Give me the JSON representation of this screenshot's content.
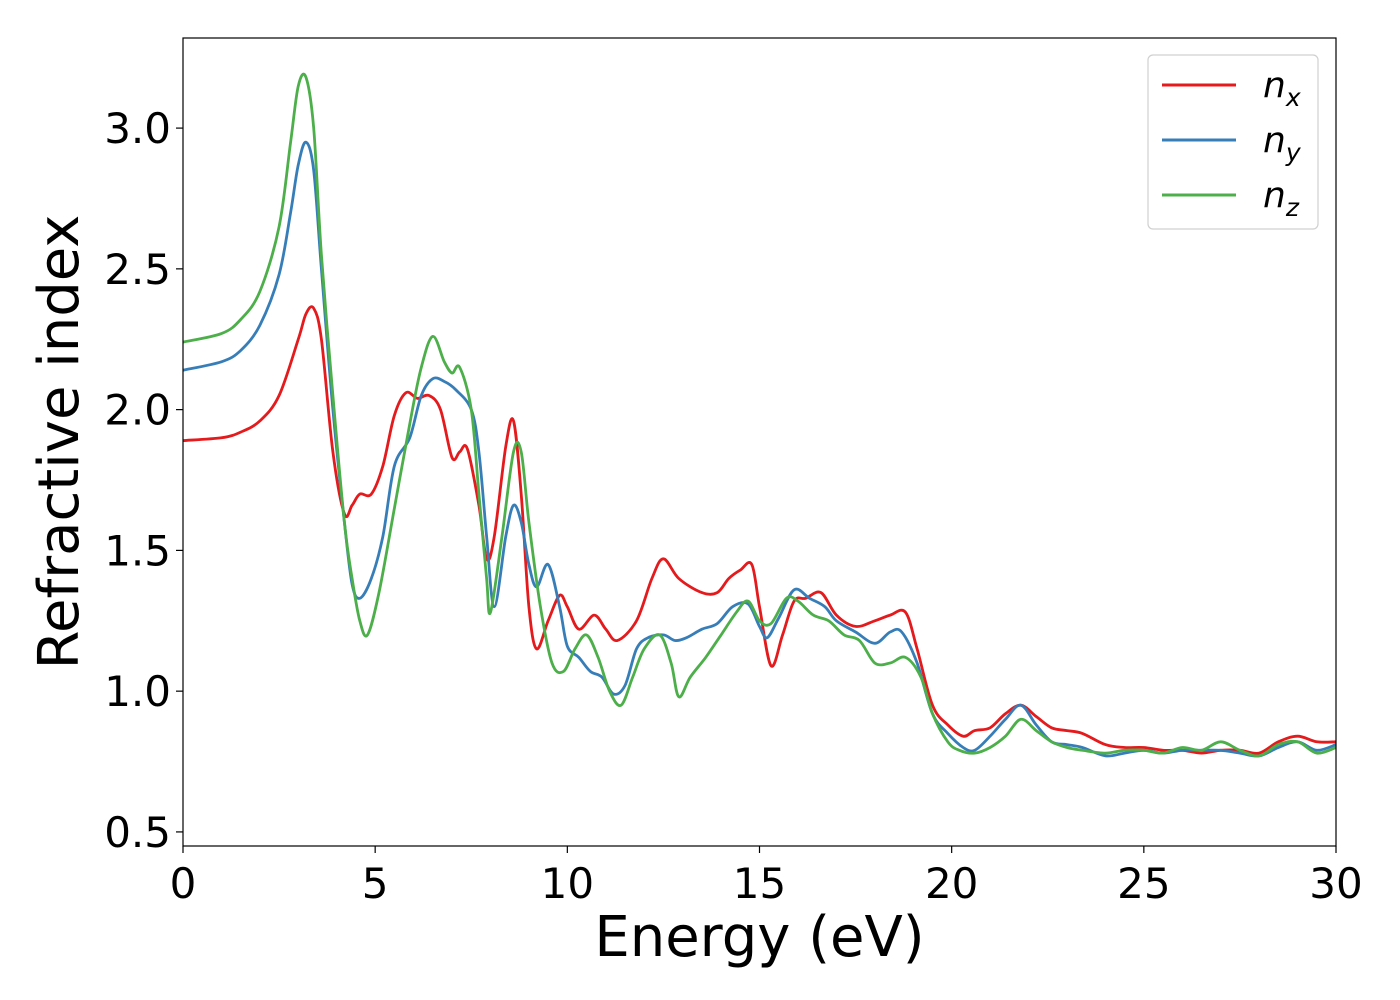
{
  "chart_data": {
    "type": "line",
    "title": "",
    "xlabel": "Energy (eV)",
    "ylabel": "Refractive index",
    "xlim": [
      0,
      30
    ],
    "ylim": [
      0.45,
      3.32
    ],
    "xticks": [
      0,
      5,
      10,
      15,
      20,
      25,
      30
    ],
    "xtick_labels": [
      "0",
      "5",
      "10",
      "15",
      "20",
      "25",
      "30"
    ],
    "yticks": [
      0.5,
      1.0,
      1.5,
      2.0,
      2.5,
      3.0
    ],
    "ytick_labels": [
      "0.5",
      "1.0",
      "1.5",
      "2.0",
      "2.5",
      "3.0"
    ],
    "grid": false,
    "legend_position": "top-right",
    "series": [
      {
        "name": "n_x",
        "label_base": "n",
        "label_sub": "x",
        "color": "#e41a1c",
        "points": [
          [
            0,
            1.89
          ],
          [
            1,
            1.9
          ],
          [
            1.5,
            1.92
          ],
          [
            2,
            1.96
          ],
          [
            2.5,
            2.05
          ],
          [
            3,
            2.25
          ],
          [
            3.2,
            2.34
          ],
          [
            3.4,
            2.36
          ],
          [
            3.6,
            2.25
          ],
          [
            3.9,
            1.85
          ],
          [
            4.2,
            1.63
          ],
          [
            4.4,
            1.66
          ],
          [
            4.6,
            1.7
          ],
          [
            4.9,
            1.7
          ],
          [
            5.2,
            1.8
          ],
          [
            5.5,
            1.98
          ],
          [
            5.8,
            2.06
          ],
          [
            6.1,
            2.04
          ],
          [
            6.4,
            2.05
          ],
          [
            6.7,
            2.0
          ],
          [
            7.0,
            1.83
          ],
          [
            7.2,
            1.85
          ],
          [
            7.4,
            1.86
          ],
          [
            7.7,
            1.66
          ],
          [
            7.9,
            1.47
          ],
          [
            8.1,
            1.55
          ],
          [
            8.4,
            1.87
          ],
          [
            8.6,
            1.96
          ],
          [
            8.8,
            1.7
          ],
          [
            9.0,
            1.3
          ],
          [
            9.2,
            1.15
          ],
          [
            9.5,
            1.25
          ],
          [
            9.8,
            1.34
          ],
          [
            10.0,
            1.3
          ],
          [
            10.3,
            1.22
          ],
          [
            10.7,
            1.27
          ],
          [
            11.0,
            1.22
          ],
          [
            11.3,
            1.18
          ],
          [
            11.8,
            1.25
          ],
          [
            12.2,
            1.4
          ],
          [
            12.5,
            1.47
          ],
          [
            12.9,
            1.4
          ],
          [
            13.5,
            1.35
          ],
          [
            13.9,
            1.35
          ],
          [
            14.2,
            1.4
          ],
          [
            14.5,
            1.43
          ],
          [
            14.8,
            1.45
          ],
          [
            15.0,
            1.3
          ],
          [
            15.3,
            1.09
          ],
          [
            15.6,
            1.2
          ],
          [
            15.9,
            1.32
          ],
          [
            16.2,
            1.33
          ],
          [
            16.6,
            1.35
          ],
          [
            17.0,
            1.27
          ],
          [
            17.5,
            1.23
          ],
          [
            18.0,
            1.25
          ],
          [
            18.4,
            1.27
          ],
          [
            18.8,
            1.28
          ],
          [
            19.1,
            1.15
          ],
          [
            19.5,
            0.95
          ],
          [
            19.9,
            0.88
          ],
          [
            20.3,
            0.84
          ],
          [
            20.6,
            0.86
          ],
          [
            21.0,
            0.87
          ],
          [
            21.4,
            0.92
          ],
          [
            21.8,
            0.95
          ],
          [
            22.2,
            0.91
          ],
          [
            22.6,
            0.87
          ],
          [
            23.0,
            0.86
          ],
          [
            23.4,
            0.85
          ],
          [
            24.0,
            0.81
          ],
          [
            24.5,
            0.8
          ],
          [
            25.0,
            0.8
          ],
          [
            25.5,
            0.79
          ],
          [
            26.0,
            0.79
          ],
          [
            26.5,
            0.78
          ],
          [
            27.0,
            0.79
          ],
          [
            27.5,
            0.79
          ],
          [
            28.0,
            0.78
          ],
          [
            28.5,
            0.82
          ],
          [
            29.0,
            0.84
          ],
          [
            29.5,
            0.82
          ],
          [
            30.0,
            0.82
          ]
        ]
      },
      {
        "name": "n_y",
        "label_base": "n",
        "label_sub": "y",
        "color": "#377eb8",
        "points": [
          [
            0,
            2.14
          ],
          [
            1,
            2.17
          ],
          [
            1.5,
            2.21
          ],
          [
            2,
            2.3
          ],
          [
            2.5,
            2.48
          ],
          [
            2.8,
            2.7
          ],
          [
            3.0,
            2.87
          ],
          [
            3.2,
            2.95
          ],
          [
            3.4,
            2.85
          ],
          [
            3.6,
            2.5
          ],
          [
            3.9,
            2.0
          ],
          [
            4.2,
            1.6
          ],
          [
            4.4,
            1.38
          ],
          [
            4.6,
            1.33
          ],
          [
            4.9,
            1.4
          ],
          [
            5.2,
            1.55
          ],
          [
            5.5,
            1.8
          ],
          [
            5.9,
            1.9
          ],
          [
            6.2,
            2.05
          ],
          [
            6.5,
            2.11
          ],
          [
            6.8,
            2.1
          ],
          [
            7.1,
            2.07
          ],
          [
            7.5,
            2.0
          ],
          [
            7.7,
            1.85
          ],
          [
            7.9,
            1.55
          ],
          [
            8.1,
            1.3
          ],
          [
            8.4,
            1.55
          ],
          [
            8.6,
            1.66
          ],
          [
            8.8,
            1.6
          ],
          [
            9.0,
            1.45
          ],
          [
            9.2,
            1.37
          ],
          [
            9.5,
            1.45
          ],
          [
            9.8,
            1.3
          ],
          [
            10.0,
            1.16
          ],
          [
            10.3,
            1.12
          ],
          [
            10.6,
            1.07
          ],
          [
            10.9,
            1.05
          ],
          [
            11.2,
            0.99
          ],
          [
            11.5,
            1.02
          ],
          [
            11.8,
            1.15
          ],
          [
            12.1,
            1.19
          ],
          [
            12.5,
            1.2
          ],
          [
            12.8,
            1.18
          ],
          [
            13.1,
            1.19
          ],
          [
            13.5,
            1.22
          ],
          [
            13.9,
            1.24
          ],
          [
            14.3,
            1.3
          ],
          [
            14.7,
            1.31
          ],
          [
            15.0,
            1.23
          ],
          [
            15.2,
            1.19
          ],
          [
            15.5,
            1.26
          ],
          [
            15.9,
            1.36
          ],
          [
            16.3,
            1.33
          ],
          [
            16.7,
            1.3
          ],
          [
            17.0,
            1.25
          ],
          [
            17.5,
            1.21
          ],
          [
            18.0,
            1.17
          ],
          [
            18.4,
            1.21
          ],
          [
            18.7,
            1.21
          ],
          [
            19.1,
            1.1
          ],
          [
            19.5,
            0.92
          ],
          [
            19.9,
            0.85
          ],
          [
            20.3,
            0.8
          ],
          [
            20.6,
            0.79
          ],
          [
            21.0,
            0.84
          ],
          [
            21.4,
            0.9
          ],
          [
            21.8,
            0.95
          ],
          [
            22.2,
            0.88
          ],
          [
            22.6,
            0.82
          ],
          [
            23.0,
            0.81
          ],
          [
            23.4,
            0.8
          ],
          [
            24.0,
            0.77
          ],
          [
            24.5,
            0.78
          ],
          [
            25.0,
            0.79
          ],
          [
            25.5,
            0.78
          ],
          [
            26.0,
            0.79
          ],
          [
            26.5,
            0.79
          ],
          [
            27.0,
            0.79
          ],
          [
            27.5,
            0.78
          ],
          [
            28.0,
            0.77
          ],
          [
            28.5,
            0.8
          ],
          [
            29.0,
            0.82
          ],
          [
            29.5,
            0.79
          ],
          [
            30.0,
            0.81
          ]
        ]
      },
      {
        "name": "n_z",
        "label_base": "n",
        "label_sub": "z",
        "color": "#4daf4a",
        "points": [
          [
            0,
            2.24
          ],
          [
            1,
            2.27
          ],
          [
            1.5,
            2.32
          ],
          [
            2,
            2.42
          ],
          [
            2.5,
            2.65
          ],
          [
            2.8,
            2.95
          ],
          [
            3.0,
            3.15
          ],
          [
            3.2,
            3.18
          ],
          [
            3.4,
            3.0
          ],
          [
            3.6,
            2.55
          ],
          [
            3.9,
            2.05
          ],
          [
            4.2,
            1.6
          ],
          [
            4.4,
            1.4
          ],
          [
            4.6,
            1.25
          ],
          [
            4.8,
            1.2
          ],
          [
            5.1,
            1.35
          ],
          [
            5.5,
            1.65
          ],
          [
            5.9,
            1.95
          ],
          [
            6.2,
            2.15
          ],
          [
            6.5,
            2.26
          ],
          [
            6.8,
            2.17
          ],
          [
            7.0,
            2.13
          ],
          [
            7.2,
            2.15
          ],
          [
            7.5,
            2.0
          ],
          [
            7.7,
            1.7
          ],
          [
            7.9,
            1.4
          ],
          [
            8.0,
            1.28
          ],
          [
            8.3,
            1.55
          ],
          [
            8.6,
            1.85
          ],
          [
            8.8,
            1.85
          ],
          [
            9.0,
            1.6
          ],
          [
            9.3,
            1.3
          ],
          [
            9.6,
            1.1
          ],
          [
            9.9,
            1.07
          ],
          [
            10.2,
            1.15
          ],
          [
            10.5,
            1.2
          ],
          [
            10.8,
            1.12
          ],
          [
            11.1,
            1.0
          ],
          [
            11.4,
            0.95
          ],
          [
            11.7,
            1.05
          ],
          [
            12.0,
            1.15
          ],
          [
            12.4,
            1.2
          ],
          [
            12.7,
            1.1
          ],
          [
            12.9,
            0.98
          ],
          [
            13.2,
            1.05
          ],
          [
            13.6,
            1.12
          ],
          [
            14.0,
            1.2
          ],
          [
            14.4,
            1.28
          ],
          [
            14.7,
            1.32
          ],
          [
            15.0,
            1.25
          ],
          [
            15.3,
            1.24
          ],
          [
            15.7,
            1.33
          ],
          [
            16.0,
            1.32
          ],
          [
            16.4,
            1.27
          ],
          [
            16.8,
            1.25
          ],
          [
            17.2,
            1.2
          ],
          [
            17.6,
            1.18
          ],
          [
            18.0,
            1.1
          ],
          [
            18.4,
            1.1
          ],
          [
            18.8,
            1.12
          ],
          [
            19.2,
            1.05
          ],
          [
            19.5,
            0.92
          ],
          [
            19.9,
            0.82
          ],
          [
            20.2,
            0.79
          ],
          [
            20.6,
            0.78
          ],
          [
            21.0,
            0.8
          ],
          [
            21.4,
            0.84
          ],
          [
            21.8,
            0.9
          ],
          [
            22.2,
            0.86
          ],
          [
            22.6,
            0.82
          ],
          [
            23.0,
            0.8
          ],
          [
            23.4,
            0.79
          ],
          [
            24.0,
            0.78
          ],
          [
            24.5,
            0.79
          ],
          [
            25.0,
            0.79
          ],
          [
            25.5,
            0.78
          ],
          [
            26.0,
            0.8
          ],
          [
            26.5,
            0.79
          ],
          [
            27.0,
            0.82
          ],
          [
            27.5,
            0.79
          ],
          [
            28.0,
            0.77
          ],
          [
            28.5,
            0.81
          ],
          [
            29.0,
            0.82
          ],
          [
            29.5,
            0.78
          ],
          [
            30.0,
            0.8
          ]
        ]
      }
    ]
  }
}
